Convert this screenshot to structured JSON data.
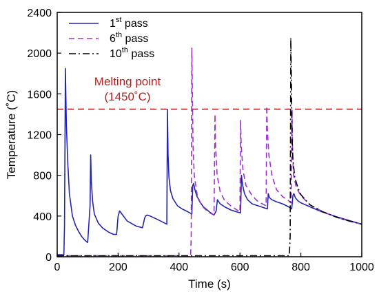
{
  "chart_data": {
    "type": "line",
    "xlabel": "Time (s)",
    "ylabel": "Temperature (˚C)",
    "xlim": [
      0,
      1000
    ],
    "ylim": [
      0,
      2400
    ],
    "xticks": [
      0,
      200,
      400,
      600,
      800,
      1000
    ],
    "yticks": [
      0,
      400,
      800,
      1200,
      1600,
      2000,
      2400
    ],
    "grid": false,
    "legend_position": "top-left",
    "reference_line": {
      "y": 1450,
      "label_line1": "Melting point",
      "label_line2": "(1450˚C)",
      "color": "#b22222"
    },
    "series": [
      {
        "name": "1st pass",
        "name_base": "1",
        "name_sup": "st",
        "name_rest": " pass",
        "style": "solid",
        "color": "#2323b4",
        "x": [
          0,
          22,
          24,
          27,
          30,
          35,
          40,
          50,
          60,
          70,
          80,
          90,
          100,
          108,
          110,
          112,
          116,
          122,
          135,
          150,
          170,
          185,
          195,
          200,
          205,
          215,
          230,
          260,
          280,
          287,
          290,
          295,
          305,
          320,
          340,
          360,
          362,
          364,
          367,
          372,
          380,
          395,
          410,
          430,
          442,
          445,
          448,
          452,
          458,
          468,
          480,
          500,
          515,
          522,
          526,
          535,
          550,
          570,
          590,
          602,
          605,
          609,
          615,
          625,
          640,
          660,
          680,
          690,
          693,
          697,
          705,
          720,
          740,
          760,
          770,
          774,
          777,
          782,
          790,
          800,
          830,
          870,
          920,
          960,
          1000
        ],
        "y": [
          20,
          20,
          300,
          1850,
          1300,
          900,
          620,
          400,
          310,
          250,
          200,
          165,
          140,
          500,
          1000,
          750,
          550,
          420,
          330,
          280,
          240,
          220,
          220,
          400,
          450,
          410,
          350,
          300,
          285,
          380,
          400,
          410,
          400,
          380,
          350,
          320,
          1450,
          1000,
          780,
          650,
          570,
          500,
          470,
          440,
          420,
          700,
          720,
          660,
          600,
          540,
          490,
          440,
          410,
          450,
          560,
          520,
          490,
          460,
          440,
          430,
          800,
          700,
          620,
          560,
          520,
          500,
          480,
          470,
          620,
          580,
          560,
          540,
          520,
          490,
          470,
          600,
          620,
          580,
          550,
          530,
          490,
          440,
          390,
          355,
          320
        ]
      },
      {
        "name": "6th pass",
        "name_base": "6",
        "name_sup": "th",
        "name_rest": " pass",
        "style": "dashed",
        "color": "#9a32cd",
        "x": [
          0,
          438,
          440,
          442,
          444,
          446,
          450,
          460,
          475,
          495,
          515,
          518,
          520,
          525,
          535,
          550,
          570,
          590,
          600,
          602,
          604,
          610,
          620,
          640,
          660,
          680,
          686,
          688,
          690,
          695,
          705,
          720,
          740,
          760,
          768,
          771,
          773,
          776,
          785,
          800,
          830,
          870,
          920,
          960,
          1000
        ],
        "y": [
          10,
          10,
          200,
          2050,
          1600,
          1100,
          800,
          600,
          500,
          440,
          410,
          1400,
          1100,
          800,
          640,
          550,
          500,
          460,
          440,
          1340,
          1100,
          850,
          700,
          600,
          540,
          510,
          500,
          1480,
          1250,
          1000,
          800,
          660,
          590,
          550,
          530,
          1450,
          1000,
          800,
          680,
          600,
          510,
          445,
          385,
          350,
          320
        ]
      },
      {
        "name": "10th pass",
        "name_base": "10",
        "name_sup": "th",
        "name_rest": " pass",
        "style": "dashdot",
        "color": "#000000",
        "x": [
          0,
          762,
          765,
          767,
          769,
          771,
          774,
          780,
          790,
          800,
          830,
          870,
          920,
          960,
          1000
        ],
        "y": [
          10,
          10,
          200,
          2150,
          1700,
          1200,
          950,
          780,
          680,
          610,
          510,
          445,
          385,
          350,
          320
        ]
      }
    ]
  }
}
